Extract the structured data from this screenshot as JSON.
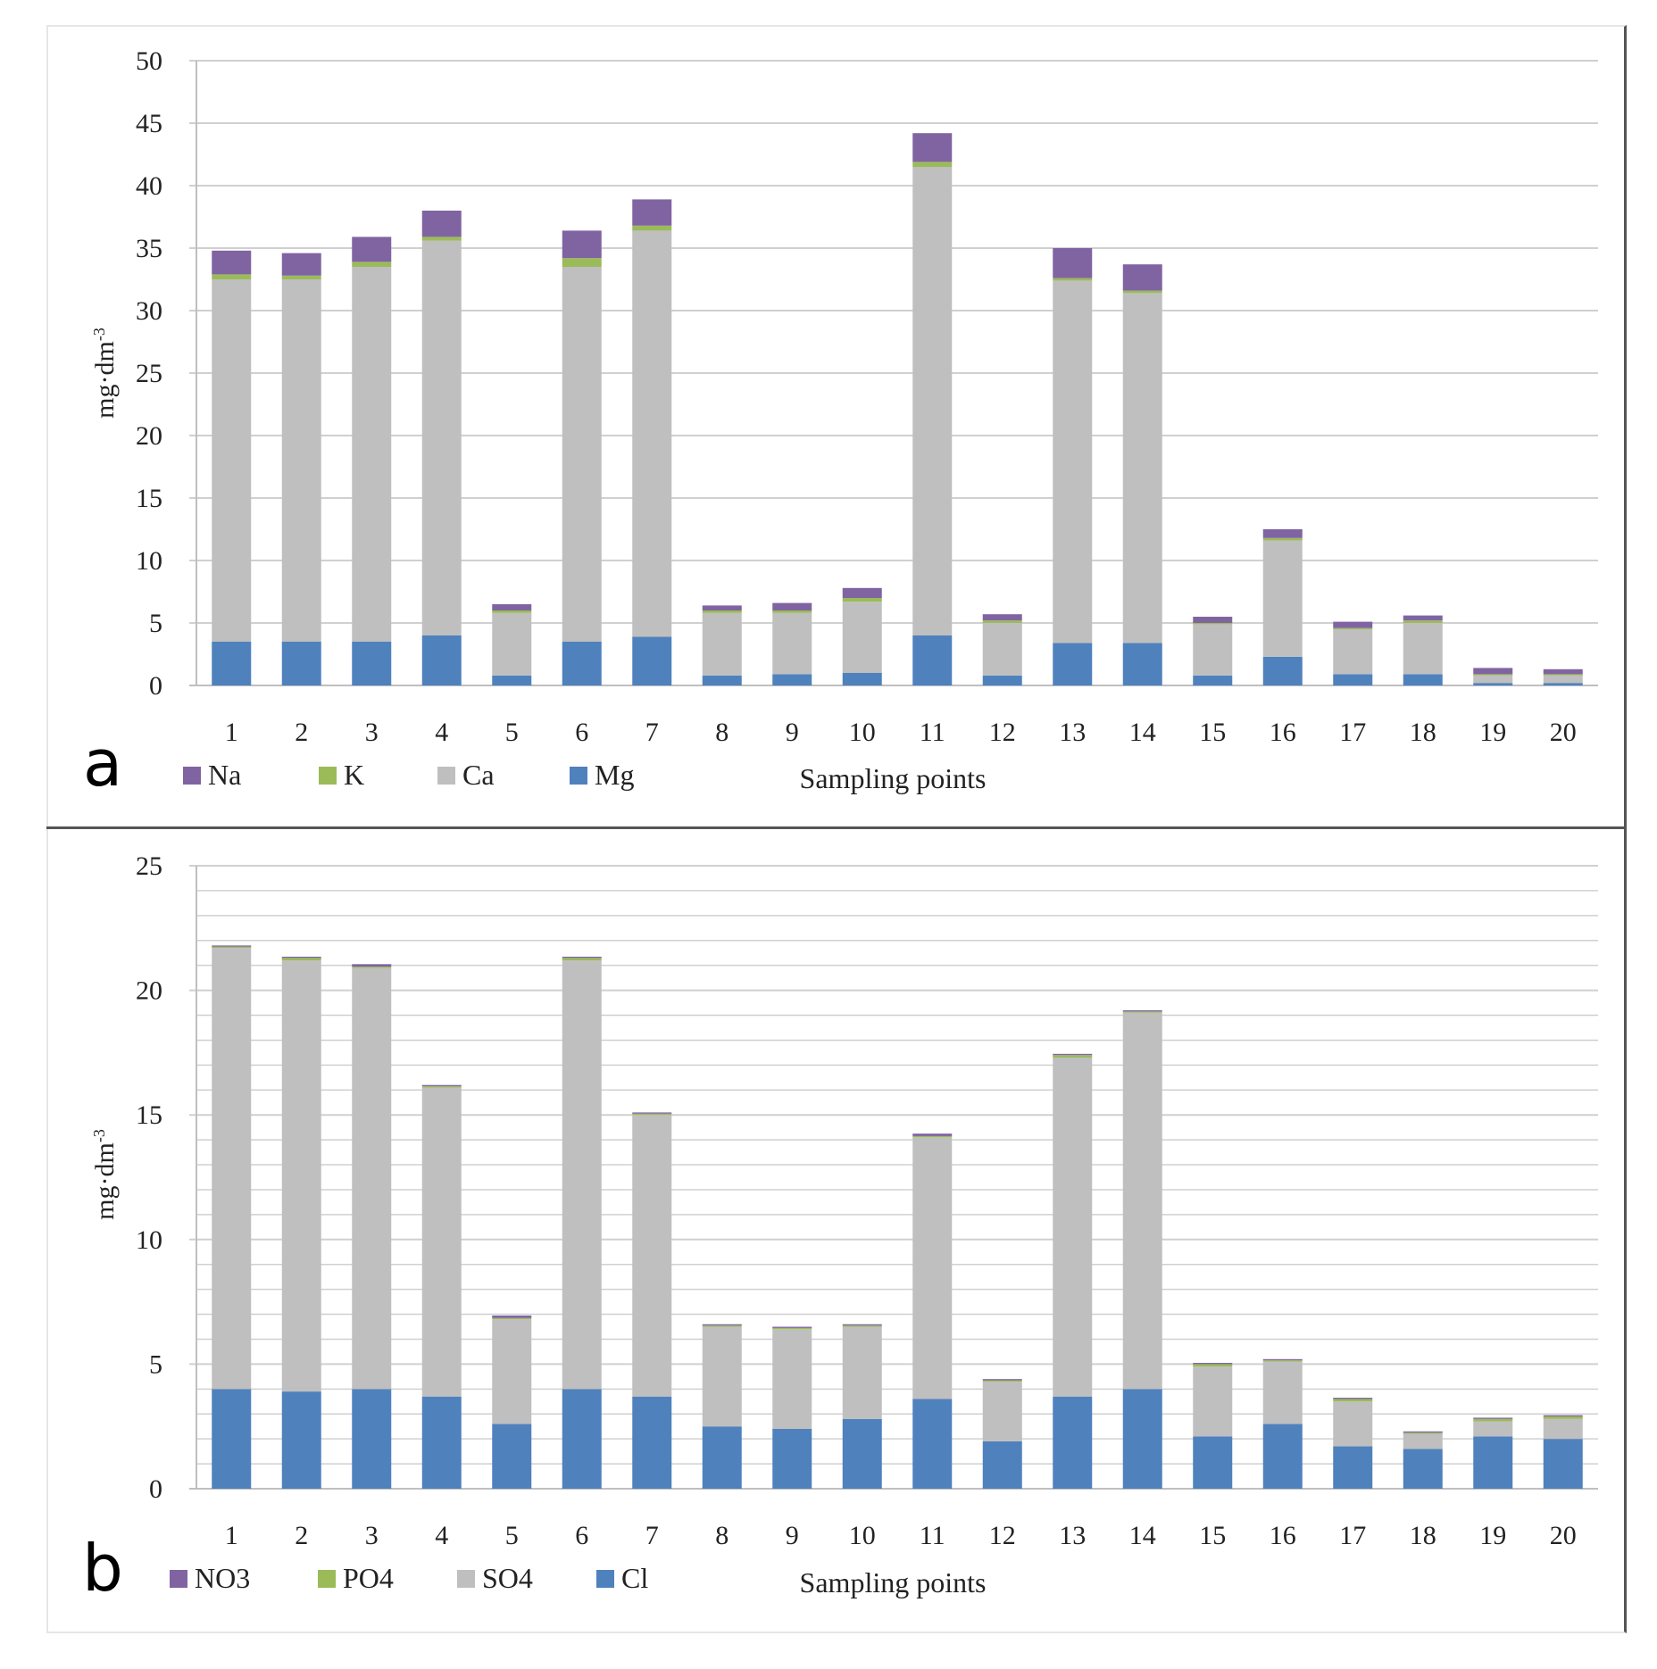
{
  "colors": {
    "purple": "#8064a2",
    "green": "#9bbb59",
    "gray": "#bfbfbf",
    "blue": "#4f81bd",
    "grid": "#d0d0d0",
    "axis": "#bfbfbf"
  },
  "chart_data": [
    {
      "type": "bar",
      "stacked": true,
      "panel_label": "a",
      "title": "",
      "xlabel": "Sampling points",
      "ylabel": "mg·dm",
      "ylabel_sup": "-3",
      "ylim": [
        0,
        50
      ],
      "yticks": [
        "0",
        "5",
        "10",
        "15",
        "20",
        "25",
        "30",
        "35",
        "40",
        "45",
        "50"
      ],
      "ytick_values": [
        0,
        5,
        10,
        15,
        20,
        25,
        30,
        35,
        40,
        45,
        50
      ],
      "minor_grid": [],
      "categories": [
        "1",
        "2",
        "3",
        "4",
        "5",
        "6",
        "7",
        "8",
        "9",
        "10",
        "11",
        "12",
        "13",
        "14",
        "15",
        "16",
        "17",
        "18",
        "19",
        "20"
      ],
      "legend": [
        "Na",
        "K",
        "Ca",
        "Mg"
      ],
      "series": [
        {
          "name": "Mg",
          "color": "#4f81bd",
          "values": [
            3.5,
            3.5,
            3.5,
            4.0,
            0.8,
            3.5,
            3.9,
            0.8,
            0.9,
            1.0,
            4.0,
            0.8,
            3.4,
            3.4,
            0.8,
            2.3,
            0.9,
            0.9,
            0.2,
            0.2
          ]
        },
        {
          "name": "Ca",
          "color": "#bfbfbf",
          "values": [
            29.0,
            29.0,
            30.0,
            31.6,
            5.0,
            30.0,
            32.5,
            5.0,
            4.9,
            5.7,
            37.5,
            4.2,
            29.0,
            28.0,
            4.1,
            9.3,
            3.6,
            4.1,
            0.6,
            0.6
          ]
        },
        {
          "name": "K",
          "color": "#9bbb59",
          "values": [
            0.4,
            0.3,
            0.4,
            0.3,
            0.2,
            0.7,
            0.4,
            0.2,
            0.2,
            0.3,
            0.4,
            0.2,
            0.2,
            0.2,
            0.1,
            0.2,
            0.1,
            0.2,
            0.1,
            0.1
          ]
        },
        {
          "name": "Na",
          "color": "#8064a2",
          "values": [
            1.9,
            1.8,
            2.0,
            2.1,
            0.5,
            2.2,
            2.1,
            0.4,
            0.6,
            0.8,
            2.3,
            0.5,
            2.4,
            2.1,
            0.5,
            0.7,
            0.5,
            0.4,
            0.5,
            0.4
          ]
        }
      ]
    },
    {
      "type": "bar",
      "stacked": true,
      "panel_label": "b",
      "title": "",
      "xlabel": "Sampling points",
      "ylabel": "mg·dm",
      "ylabel_sup": "-3",
      "ylim": [
        0,
        25
      ],
      "yticks": [
        "0",
        "5",
        "10",
        "15",
        "20",
        "25"
      ],
      "ytick_values": [
        0,
        5,
        10,
        15,
        20,
        25
      ],
      "minor_grid": [
        1,
        2,
        3,
        4,
        6,
        7,
        8,
        9,
        11,
        12,
        13,
        14,
        16,
        17,
        18,
        19,
        21,
        22,
        23,
        24
      ],
      "categories": [
        "1",
        "2",
        "3",
        "4",
        "5",
        "6",
        "7",
        "8",
        "9",
        "10",
        "11",
        "12",
        "13",
        "14",
        "15",
        "16",
        "17",
        "18",
        "19",
        "20"
      ],
      "legend": [
        "NO3",
        "PO4",
        "SO4",
        "Cl"
      ],
      "series": [
        {
          "name": "Cl",
          "color": "#4f81bd",
          "values": [
            4.0,
            3.9,
            4.0,
            3.7,
            2.6,
            4.0,
            3.7,
            2.5,
            2.4,
            2.8,
            3.6,
            1.9,
            3.7,
            4.0,
            2.1,
            2.6,
            1.7,
            1.6,
            2.1,
            2.0
          ]
        },
        {
          "name": "SO4",
          "color": "#bfbfbf",
          "values": [
            17.7,
            17.3,
            16.9,
            12.4,
            4.2,
            17.2,
            11.3,
            4.0,
            4.0,
            3.7,
            10.5,
            2.4,
            13.6,
            15.1,
            2.8,
            2.5,
            1.8,
            0.6,
            0.6,
            0.8
          ]
        },
        {
          "name": "PO4",
          "color": "#9bbb59",
          "values": [
            0.05,
            0.1,
            0.05,
            0.05,
            0.05,
            0.1,
            0.05,
            0.05,
            0.05,
            0.05,
            0.05,
            0.05,
            0.1,
            0.05,
            0.1,
            0.05,
            0.1,
            0.05,
            0.1,
            0.1
          ]
        },
        {
          "name": "NO3",
          "color": "#8064a2",
          "values": [
            0.05,
            0.05,
            0.1,
            0.05,
            0.1,
            0.05,
            0.05,
            0.05,
            0.05,
            0.05,
            0.1,
            0.05,
            0.05,
            0.05,
            0.05,
            0.05,
            0.05,
            0.05,
            0.05,
            0.05
          ]
        }
      ]
    }
  ]
}
